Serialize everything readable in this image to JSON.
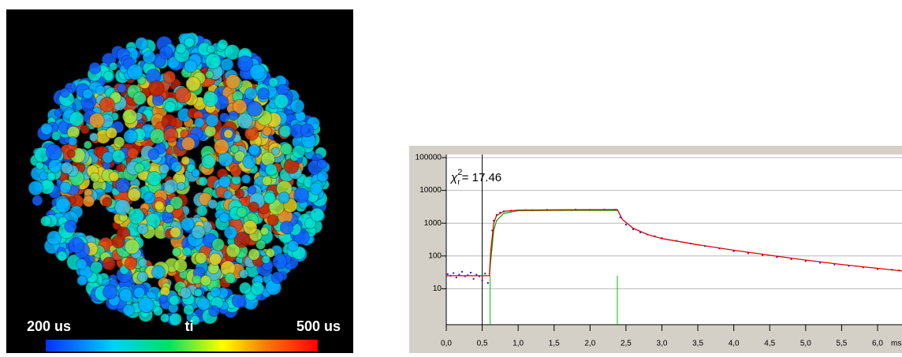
{
  "image_panel": {
    "colorbar": {
      "left_label": "200 us",
      "center_label": "ti",
      "right_label": "500 us"
    }
  },
  "chart_data": {
    "type": "line",
    "log_y": true,
    "grid": true,
    "annotation": {
      "symbol": "χ",
      "sub": "r",
      "sup": "2",
      "text": "= 17.46"
    },
    "x_unit": "ms",
    "xlim": [
      0,
      6.34
    ],
    "ylim": [
      1,
      100000
    ],
    "yticks": [
      10,
      100,
      1000,
      10000,
      100000
    ],
    "xticks": [
      {
        "value": 0,
        "label": "0,0"
      },
      {
        "value": 0.5,
        "label": "0,5"
      },
      {
        "value": 1,
        "label": "1,0"
      },
      {
        "value": 1.5,
        "label": "1,5"
      },
      {
        "value": 2,
        "label": "2,0"
      },
      {
        "value": 2.5,
        "label": "2,5"
      },
      {
        "value": 3,
        "label": "3,0"
      },
      {
        "value": 3.5,
        "label": "3,5"
      },
      {
        "value": 4,
        "label": "4,0"
      },
      {
        "value": 4.5,
        "label": "4,5"
      },
      {
        "value": 5,
        "label": "5,0"
      },
      {
        "value": 5.5,
        "label": "5,5"
      },
      {
        "value": 6,
        "label": "6,0"
      }
    ],
    "cursor": 0.5,
    "gates": [
      0.61,
      2.38
    ],
    "cursor_color": "#000000",
    "gate_color": "#00c000",
    "series": [
      {
        "color": "#1a1aff",
        "mode": "points",
        "x": [
          0.02,
          0.06,
          0.1,
          0.14,
          0.18,
          0.22,
          0.26,
          0.3,
          0.34,
          0.38,
          0.42,
          0.46,
          0.5,
          0.54,
          0.58,
          0.62,
          0.64,
          0.66,
          0.7,
          0.75,
          0.8,
          0.9,
          1.0,
          1.1,
          1.2,
          1.4,
          1.6,
          1.8,
          2.0,
          2.2,
          2.35,
          2.42,
          2.5,
          2.6,
          2.7,
          2.8,
          2.9,
          3.0,
          3.2,
          3.4,
          3.6,
          3.8,
          4.0,
          4.2,
          4.4,
          4.6,
          4.8,
          5.0,
          5.2,
          5.4,
          5.6,
          5.8,
          6.0,
          6.2,
          6.3
        ],
        "values": [
          28,
          25,
          30,
          22,
          27,
          33,
          24,
          26,
          31,
          20,
          27,
          24,
          18,
          29,
          15,
          120,
          600,
          1200,
          1800,
          2100,
          2300,
          2400,
          2450,
          2500,
          2480,
          2550,
          2500,
          2600,
          2550,
          2600,
          2580,
          1500,
          900,
          650,
          520,
          450,
          400,
          350,
          290,
          240,
          200,
          170,
          140,
          120,
          105,
          92,
          80,
          70,
          62,
          55,
          50,
          45,
          40,
          38,
          36
        ]
      },
      {
        "color": "#00b000",
        "mode": "line",
        "x": [
          0.6,
          0.62,
          0.66,
          0.7,
          0.8,
          1.0,
          1.5,
          2.0,
          2.38
        ],
        "values": [
          25,
          80,
          600,
          1200,
          2000,
          2400,
          2450,
          2450,
          2450
        ]
      },
      {
        "color": "#e00000",
        "mode": "line",
        "x": [
          0,
          0.6,
          0.62,
          0.66,
          0.7,
          0.8,
          1.0,
          1.5,
          2.0,
          2.38,
          2.45,
          2.6,
          2.8,
          3.0,
          3.5,
          4.0,
          4.5,
          5.0,
          5.5,
          6.0,
          6.34
        ],
        "values": [
          25,
          25,
          150,
          1000,
          1700,
          2300,
          2500,
          2550,
          2580,
          2600,
          1300,
          700,
          450,
          340,
          220,
          150,
          105,
          75,
          55,
          42,
          35
        ]
      }
    ]
  }
}
